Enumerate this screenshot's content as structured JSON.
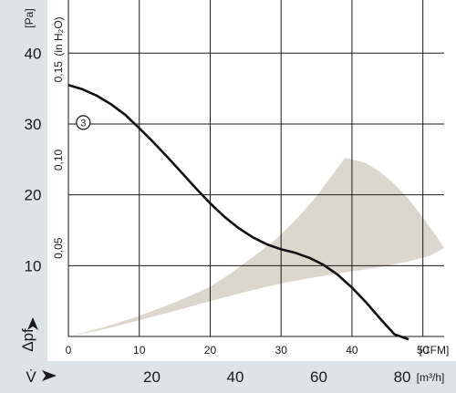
{
  "colors": {
    "panel": "#dce4e6",
    "grid": "#1a1a1a",
    "curve": "#111111",
    "region": "#dbd7cc"
  },
  "chart_data": {
    "type": "line",
    "left_axis": {
      "unit": "[Pa]",
      "ticks": [
        "10",
        "20",
        "30",
        "40"
      ],
      "symbol": "Δpf"
    },
    "inner_axis": {
      "unit": "(in H₂O)",
      "ticks": [
        "0,05",
        "0,10",
        "0,15"
      ]
    },
    "x_axis_cfm": {
      "unit": "[CFM]",
      "ticks": [
        "0",
        "10",
        "20",
        "30",
        "40",
        "50"
      ]
    },
    "x_axis_m3h": {
      "unit": "[m³/h]",
      "ticks": [
        "20",
        "40",
        "60",
        "80"
      ],
      "symbol": "V̇"
    },
    "xlim_cfm": [
      0,
      53
    ],
    "ylim_pa": [
      0,
      47.5
    ],
    "grid": true,
    "series": [
      {
        "name": "3",
        "x": [
          0,
          2,
          4,
          6,
          8,
          10,
          12,
          14,
          16,
          18,
          20,
          22,
          24,
          26,
          28,
          30,
          32,
          34,
          36,
          38,
          40,
          42,
          44,
          46,
          48
        ],
        "y": [
          35.5,
          34.9,
          34.0,
          32.8,
          31.3,
          29.4,
          27.4,
          25.3,
          23.1,
          20.9,
          18.8,
          16.9,
          15.3,
          14.0,
          13.0,
          12.3,
          11.8,
          11.1,
          10.1,
          8.7,
          6.9,
          4.8,
          2.5,
          0.3,
          -2.2
        ]
      }
    ],
    "shaded_region": {
      "x": [
        0,
        5,
        10,
        15,
        20,
        25,
        30,
        35,
        40,
        44,
        48,
        51,
        53,
        52,
        50,
        48,
        46,
        44,
        42,
        40,
        39,
        37,
        35,
        33,
        31,
        29,
        26,
        23,
        20,
        15,
        10,
        5,
        0
      ],
      "y": [
        0,
        1.0,
        2.3,
        3.6,
        5.0,
        6.3,
        7.5,
        8.4,
        9.2,
        9.8,
        10.6,
        11.4,
        12.5,
        14.0,
        16.8,
        19.4,
        21.5,
        23.2,
        24.5,
        25.0,
        25.2,
        22.5,
        19.8,
        17.5,
        15.4,
        13.5,
        11.2,
        9.0,
        7.0,
        4.8,
        2.9,
        1.3,
        0
      ]
    }
  }
}
